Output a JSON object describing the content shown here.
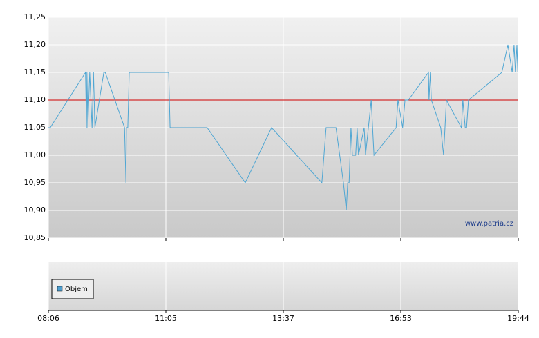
{
  "chart_data": {
    "type": "line",
    "x": [
      0,
      0.4,
      7.9,
      8.1,
      8.2,
      8.4,
      8.8,
      9.3,
      9.6,
      9.9,
      11.8,
      12.1,
      16.2,
      16.5,
      16.6,
      16.9,
      17.2,
      25.6,
      25.9,
      33.8,
      41.9,
      47.5,
      58.2,
      59.1,
      61.2,
      62.8,
      63.4,
      63.7,
      64.0,
      64.4,
      64.7,
      65.4,
      65.7,
      66.0,
      67.2,
      67.5,
      68.7,
      69.3,
      74.0,
      74.4,
      75.4,
      75.9,
      76.6,
      80.9,
      81.0,
      81.3,
      81.5,
      83.5,
      84.1,
      84.7,
      87.9,
      88.2,
      88.7,
      89.0,
      89.4,
      96.5,
      97.8,
      98.7,
      99.1,
      99.4,
      99.7,
      99.9
    ],
    "values": [
      11.05,
      11.05,
      11.15,
      11.05,
      11.15,
      11.05,
      11.15,
      11.05,
      11.15,
      11.05,
      11.15,
      11.15,
      11.05,
      10.95,
      11.05,
      11.05,
      11.15,
      11.15,
      11.05,
      11.05,
      10.95,
      11.05,
      10.95,
      11.05,
      11.05,
      10.95,
      10.9,
      10.95,
      10.95,
      11.05,
      11.0,
      11.0,
      11.05,
      11.0,
      11.05,
      11.0,
      11.1,
      11.0,
      11.05,
      11.1,
      11.05,
      11.1,
      11.1,
      11.15,
      11.1,
      11.15,
      11.1,
      11.05,
      11.0,
      11.1,
      11.05,
      11.1,
      11.05,
      11.05,
      11.1,
      11.15,
      11.2,
      11.15,
      11.2,
      11.15,
      11.2,
      11.15
    ],
    "color": "#4fa6d3",
    "reference_line": {
      "value": 11.1,
      "color": "#d00000"
    },
    "xlim": [
      0,
      100
    ],
    "xticks": [
      {
        "value": 0,
        "label": "08:06"
      },
      {
        "value": 25,
        "label": "11:05"
      },
      {
        "value": 50,
        "label": "13:37"
      },
      {
        "value": 75,
        "label": "16:53"
      },
      {
        "value": 100,
        "label": "19:44"
      }
    ],
    "ylim": [
      10.85,
      11.25
    ],
    "yticks": [
      {
        "value": 10.85,
        "label": "10,85"
      },
      {
        "value": 10.9,
        "label": "10,90"
      },
      {
        "value": 10.95,
        "label": "10,95"
      },
      {
        "value": 11.0,
        "label": "11,00"
      },
      {
        "value": 11.05,
        "label": "11,05"
      },
      {
        "value": 11.1,
        "label": "11,10"
      },
      {
        "value": 11.15,
        "label": "11,15"
      },
      {
        "value": 11.2,
        "label": "11,20"
      },
      {
        "value": 11.25,
        "label": "11,25"
      }
    ],
    "grid": true,
    "watermark": "www.patria.cz",
    "legend": [
      {
        "label": "Objem",
        "color": "#4f9fd0"
      }
    ]
  }
}
